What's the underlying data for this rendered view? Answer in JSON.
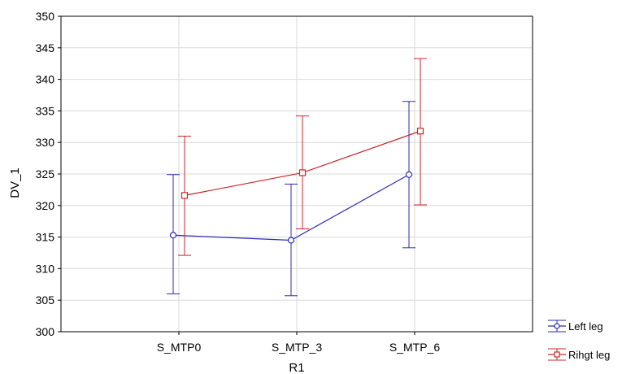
{
  "chart_data": {
    "type": "line",
    "title": "",
    "xlabel": "R1",
    "ylabel": "DV_1",
    "categories": [
      "S_MTP0",
      "S_MTP_3",
      "S_MTP_6"
    ],
    "ylim": [
      300,
      350
    ],
    "yticks": [
      300,
      305,
      310,
      315,
      320,
      325,
      330,
      335,
      340,
      345,
      350
    ],
    "grid": true,
    "legend_position": "right",
    "series": [
      {
        "name": "Left leg",
        "color": "#2b2bb0",
        "marker": "circle",
        "values": [
          315.3,
          314.5,
          324.9
        ],
        "error_low": [
          306.0,
          305.7,
          313.3
        ],
        "error_high": [
          324.9,
          323.4,
          336.5
        ]
      },
      {
        "name": "Rihgt leg",
        "color": "#c8262b",
        "marker": "square",
        "values": [
          321.6,
          325.2,
          331.8
        ],
        "error_low": [
          312.1,
          316.3,
          320.1
        ],
        "error_high": [
          331.0,
          334.2,
          343.3
        ]
      }
    ]
  }
}
